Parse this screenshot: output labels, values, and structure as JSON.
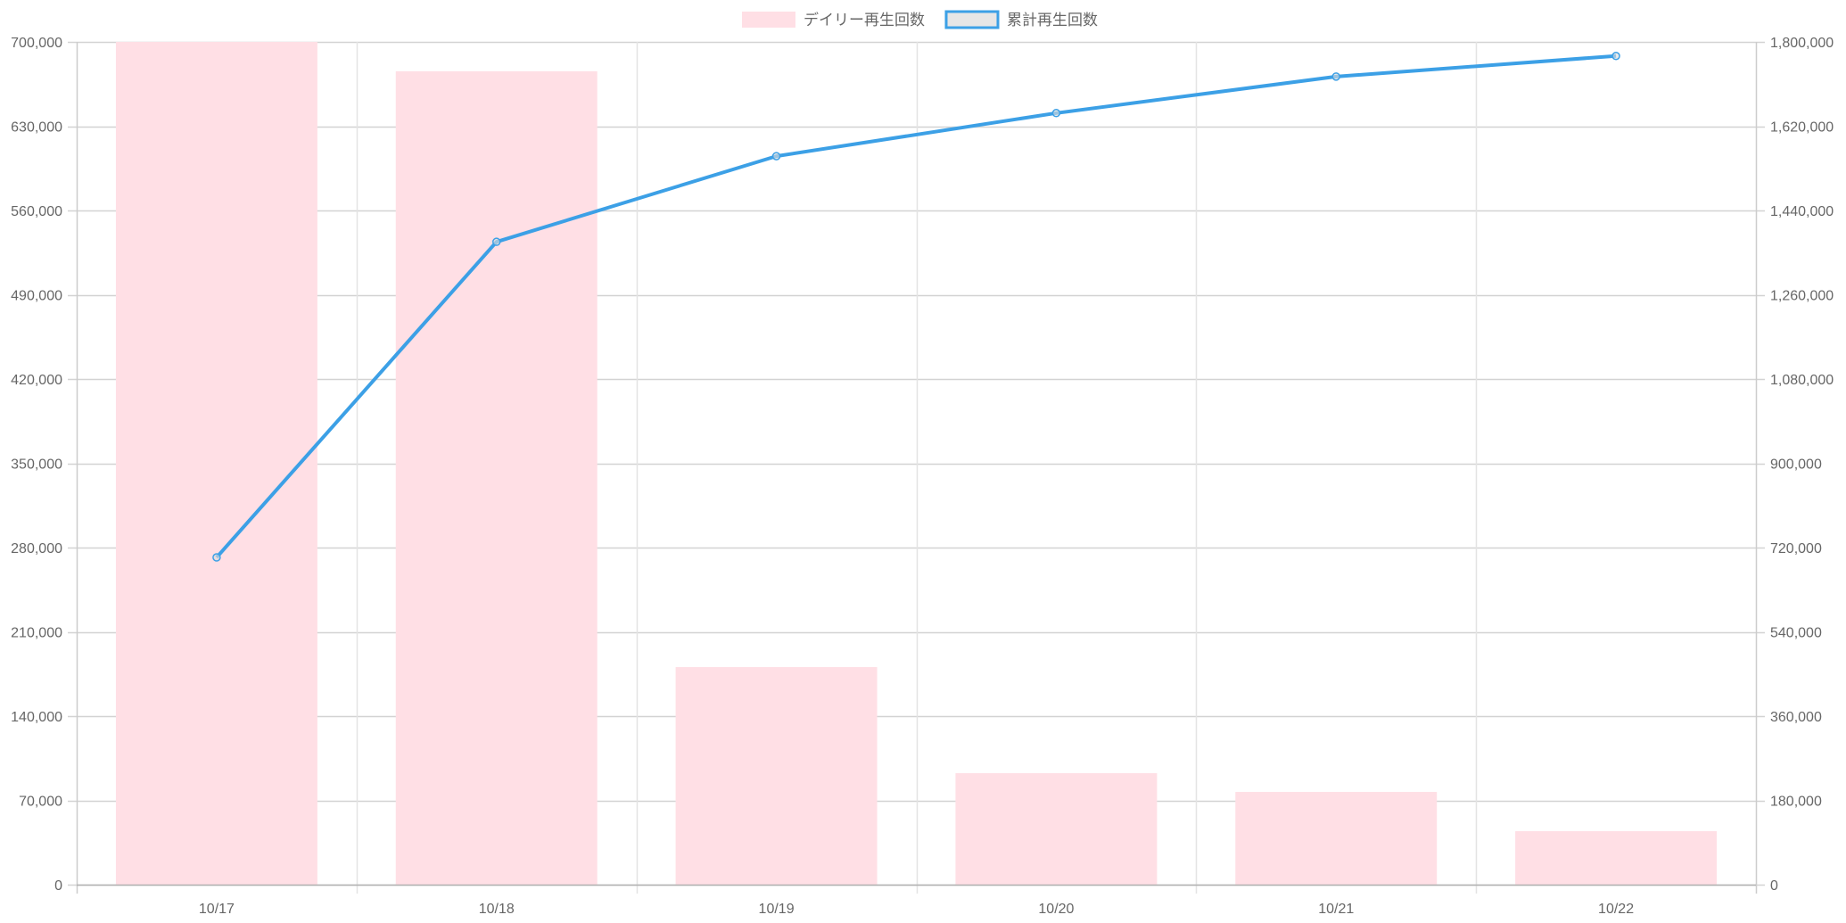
{
  "chart_data": {
    "type": "bar",
    "title": "",
    "categories": [
      "10/17",
      "10/18",
      "10/19",
      "10/20",
      "10/21",
      "10/22"
    ],
    "series": [
      {
        "name": "デイリー再生回数",
        "type": "bar",
        "axis": "left",
        "color": "#ffdfe5",
        "values": [
          700000,
          675600,
          180700,
          92600,
          77000,
          44400
        ]
      },
      {
        "name": "累計再生回数",
        "type": "line",
        "axis": "right",
        "color": "#3ca0e6",
        "legend_fill": "#e6e6e6",
        "values": [
          699000,
          1373000,
          1556000,
          1648000,
          1726000,
          1770000
        ]
      }
    ],
    "left_axis": {
      "ylim": [
        0,
        700000
      ],
      "ticks": [
        0,
        70000,
        140000,
        210000,
        280000,
        350000,
        420000,
        490000,
        560000,
        630000,
        700000
      ],
      "tick_labels": [
        "0",
        "70,000",
        "140,000",
        "210,000",
        "280,000",
        "350,000",
        "420,000",
        "490,000",
        "560,000",
        "630,000",
        "700,000"
      ]
    },
    "right_axis": {
      "ylim": [
        0,
        1800000
      ],
      "ticks": [
        0,
        180000,
        360000,
        540000,
        720000,
        900000,
        1080000,
        1260000,
        1440000,
        1620000,
        1800000
      ],
      "tick_labels": [
        "0",
        "180,000",
        "360,000",
        "540,000",
        "720,000",
        "900,000",
        "1,080,000",
        "1,260,000",
        "1,440,000",
        "1,620,000",
        "1,800,000"
      ]
    },
    "xlabel": "",
    "ylabel": "",
    "grid": true,
    "legend": {
      "placement": "top-center",
      "entries": [
        "デイリー再生回数",
        "累計再生回数"
      ]
    }
  }
}
